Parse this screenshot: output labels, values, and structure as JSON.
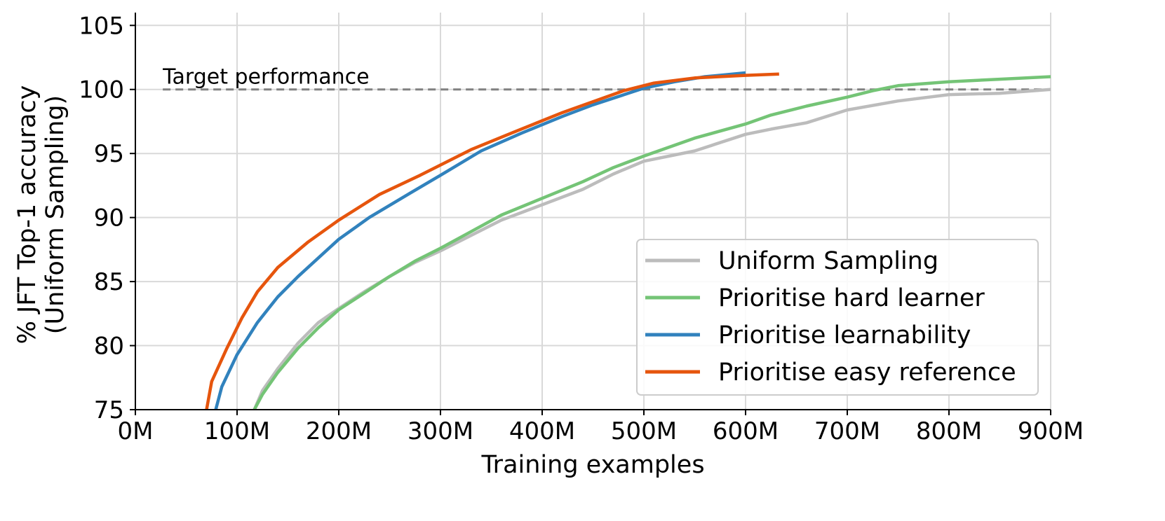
{
  "chart_data": {
    "type": "line",
    "xlabel": "Training examples",
    "ylabel_line1": "% JFT Top-1 accuracy",
    "ylabel_line2": "(Uniform Sampling)",
    "xlim": [
      0,
      900
    ],
    "ylim": [
      75,
      106
    ],
    "x_ticks": [
      0,
      100,
      200,
      300,
      400,
      500,
      600,
      700,
      800,
      900
    ],
    "x_tick_labels": [
      "0M",
      "100M",
      "200M",
      "300M",
      "400M",
      "500M",
      "600M",
      "700M",
      "800M",
      "900M"
    ],
    "y_ticks": [
      75,
      80,
      85,
      90,
      95,
      100,
      105
    ],
    "y_tick_labels": [
      "75",
      "80",
      "85",
      "90",
      "95",
      "100",
      "105"
    ],
    "grid": true,
    "legend_position": "lower-right",
    "annotation": {
      "text": "Target performance",
      "y": 100,
      "x_start": 27,
      "x_end": 900,
      "color": "#808080",
      "style": "dashed"
    },
    "series": [
      {
        "name": "Uniform Sampling",
        "color": "#bcbcbc",
        "points": [
          [
            117,
            75
          ],
          [
            125,
            76.5
          ],
          [
            140,
            78.2
          ],
          [
            160,
            80.2
          ],
          [
            180,
            81.8
          ],
          [
            200,
            82.9
          ],
          [
            225,
            84.2
          ],
          [
            250,
            85.4
          ],
          [
            275,
            86.5
          ],
          [
            300,
            87.4
          ],
          [
            330,
            88.6
          ],
          [
            360,
            89.8
          ],
          [
            400,
            91.0
          ],
          [
            440,
            92.2
          ],
          [
            470,
            93.4
          ],
          [
            500,
            94.4
          ],
          [
            550,
            95.2
          ],
          [
            600,
            96.5
          ],
          [
            625,
            96.9
          ],
          [
            660,
            97.4
          ],
          [
            700,
            98.4
          ],
          [
            750,
            99.1
          ],
          [
            800,
            99.6
          ],
          [
            850,
            99.7
          ],
          [
            900,
            100.0
          ]
        ]
      },
      {
        "name": "Prioritise hard learner",
        "color": "#74c476",
        "points": [
          [
            117,
            75
          ],
          [
            125,
            76.2
          ],
          [
            140,
            77.9
          ],
          [
            160,
            79.8
          ],
          [
            180,
            81.4
          ],
          [
            200,
            82.8
          ],
          [
            225,
            84.1
          ],
          [
            250,
            85.4
          ],
          [
            275,
            86.6
          ],
          [
            300,
            87.6
          ],
          [
            330,
            88.9
          ],
          [
            360,
            90.2
          ],
          [
            400,
            91.5
          ],
          [
            440,
            92.8
          ],
          [
            470,
            93.9
          ],
          [
            500,
            94.8
          ],
          [
            550,
            96.2
          ],
          [
            600,
            97.3
          ],
          [
            625,
            98.0
          ],
          [
            660,
            98.7
          ],
          [
            700,
            99.4
          ],
          [
            725,
            99.9
          ],
          [
            750,
            100.3
          ],
          [
            800,
            100.6
          ],
          [
            850,
            100.8
          ],
          [
            900,
            101.0
          ]
        ]
      },
      {
        "name": "Prioritise learnability",
        "color": "#3182bd",
        "points": [
          [
            79,
            75
          ],
          [
            85,
            76.8
          ],
          [
            100,
            79.3
          ],
          [
            120,
            81.8
          ],
          [
            140,
            83.8
          ],
          [
            160,
            85.4
          ],
          [
            200,
            88.3
          ],
          [
            230,
            90.0
          ],
          [
            270,
            91.9
          ],
          [
            300,
            93.3
          ],
          [
            340,
            95.2
          ],
          [
            380,
            96.6
          ],
          [
            420,
            97.9
          ],
          [
            450,
            98.8
          ],
          [
            500,
            100.1
          ],
          [
            530,
            100.6
          ],
          [
            560,
            101.0
          ],
          [
            600,
            101.3
          ]
        ]
      },
      {
        "name": "Prioritise easy reference",
        "color": "#e6550d",
        "points": [
          [
            70,
            75
          ],
          [
            75,
            77.2
          ],
          [
            90,
            79.8
          ],
          [
            105,
            82.2
          ],
          [
            120,
            84.2
          ],
          [
            140,
            86.1
          ],
          [
            170,
            88.1
          ],
          [
            200,
            89.8
          ],
          [
            240,
            91.8
          ],
          [
            280,
            93.3
          ],
          [
            330,
            95.3
          ],
          [
            370,
            96.6
          ],
          [
            420,
            98.2
          ],
          [
            480,
            99.9
          ],
          [
            510,
            100.5
          ],
          [
            550,
            100.9
          ],
          [
            600,
            101.1
          ],
          [
            633,
            101.2
          ]
        ]
      }
    ]
  }
}
